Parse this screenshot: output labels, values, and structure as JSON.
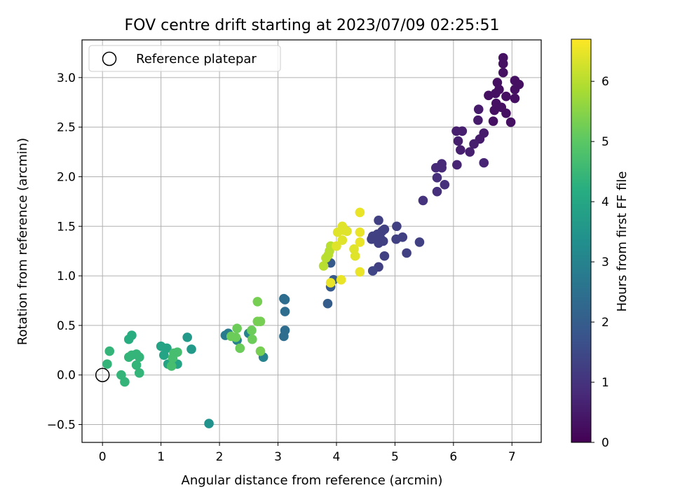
{
  "chart_data": {
    "type": "scatter",
    "title": "FOV centre drift starting at 2023/07/09 02:25:51",
    "xlabel": "Angular distance from reference (arcmin)",
    "ylabel": "Rotation from reference (arcmin)",
    "xlim": [
      -0.35,
      7.5
    ],
    "ylim": [
      -0.68,
      3.38
    ],
    "xticks": [
      0,
      1,
      2,
      3,
      4,
      5,
      6,
      7
    ],
    "xtick_labels": [
      "0",
      "1",
      "2",
      "3",
      "4",
      "5",
      "6",
      "7"
    ],
    "yticks": [
      -0.5,
      0.0,
      0.5,
      1.0,
      1.5,
      2.0,
      2.5,
      3.0
    ],
    "ytick_labels": [
      "−0.5",
      "0.0",
      "0.5",
      "1.0",
      "1.5",
      "2.0",
      "2.5",
      "3.0"
    ],
    "grid": true,
    "legend": {
      "placement": "upper-left",
      "entries": [
        "Reference platepar"
      ]
    },
    "reference_point": {
      "x": 0,
      "y": 0,
      "label": "Reference platepar"
    },
    "colorbar": {
      "label": "Hours from first FF file",
      "colormap": "viridis",
      "range": [
        0,
        6.7
      ],
      "ticks": [
        0,
        1,
        2,
        3,
        4,
        5,
        6
      ],
      "tick_labels": [
        "0",
        "1",
        "2",
        "3",
        "4",
        "5",
        "6"
      ]
    },
    "points": [
      {
        "x": 6.85,
        "y": 3.2,
        "h": 0.3
      },
      {
        "x": 6.85,
        "y": 3.14,
        "h": 0.3
      },
      {
        "x": 6.85,
        "y": 3.05,
        "h": 0.3
      },
      {
        "x": 7.05,
        "y": 2.97,
        "h": 0.3
      },
      {
        "x": 7.12,
        "y": 2.93,
        "h": 0.3
      },
      {
        "x": 7.05,
        "y": 2.88,
        "h": 0.3
      },
      {
        "x": 6.75,
        "y": 2.95,
        "h": 0.3
      },
      {
        "x": 6.78,
        "y": 2.88,
        "h": 0.3
      },
      {
        "x": 6.72,
        "y": 2.84,
        "h": 0.3
      },
      {
        "x": 6.9,
        "y": 2.81,
        "h": 0.3
      },
      {
        "x": 7.05,
        "y": 2.79,
        "h": 0.3
      },
      {
        "x": 6.6,
        "y": 2.82,
        "h": 0.3
      },
      {
        "x": 6.73,
        "y": 2.74,
        "h": 0.3
      },
      {
        "x": 6.82,
        "y": 2.7,
        "h": 0.3
      },
      {
        "x": 6.7,
        "y": 2.67,
        "h": 0.3
      },
      {
        "x": 6.9,
        "y": 2.64,
        "h": 0.3
      },
      {
        "x": 6.68,
        "y": 2.56,
        "h": 0.3
      },
      {
        "x": 6.98,
        "y": 2.55,
        "h": 0.3
      },
      {
        "x": 6.43,
        "y": 2.68,
        "h": 0.5
      },
      {
        "x": 6.42,
        "y": 2.57,
        "h": 0.5
      },
      {
        "x": 6.52,
        "y": 2.44,
        "h": 0.5
      },
      {
        "x": 6.45,
        "y": 2.38,
        "h": 0.5
      },
      {
        "x": 6.35,
        "y": 2.33,
        "h": 0.6
      },
      {
        "x": 6.05,
        "y": 2.46,
        "h": 0.6
      },
      {
        "x": 6.15,
        "y": 2.46,
        "h": 0.6
      },
      {
        "x": 6.08,
        "y": 2.36,
        "h": 0.6
      },
      {
        "x": 6.12,
        "y": 2.27,
        "h": 0.6
      },
      {
        "x": 6.28,
        "y": 2.25,
        "h": 0.6
      },
      {
        "x": 6.52,
        "y": 2.14,
        "h": 0.7
      },
      {
        "x": 6.06,
        "y": 2.12,
        "h": 0.7
      },
      {
        "x": 5.8,
        "y": 2.13,
        "h": 0.8
      },
      {
        "x": 5.7,
        "y": 2.09,
        "h": 0.8
      },
      {
        "x": 5.8,
        "y": 2.09,
        "h": 0.8
      },
      {
        "x": 5.72,
        "y": 1.99,
        "h": 0.9
      },
      {
        "x": 5.85,
        "y": 1.92,
        "h": 0.9
      },
      {
        "x": 5.72,
        "y": 1.85,
        "h": 0.9
      },
      {
        "x": 5.48,
        "y": 1.76,
        "h": 1.0
      },
      {
        "x": 4.72,
        "y": 1.56,
        "h": 1.3
      },
      {
        "x": 5.03,
        "y": 1.5,
        "h": 1.3
      },
      {
        "x": 4.82,
        "y": 1.47,
        "h": 1.3
      },
      {
        "x": 4.78,
        "y": 1.45,
        "h": 1.3
      },
      {
        "x": 4.7,
        "y": 1.42,
        "h": 1.3
      },
      {
        "x": 4.62,
        "y": 1.4,
        "h": 1.3
      },
      {
        "x": 4.75,
        "y": 1.38,
        "h": 1.3
      },
      {
        "x": 5.13,
        "y": 1.39,
        "h": 1.3
      },
      {
        "x": 5.02,
        "y": 1.37,
        "h": 1.3
      },
      {
        "x": 4.6,
        "y": 1.37,
        "h": 1.3
      },
      {
        "x": 4.8,
        "y": 1.35,
        "h": 1.3
      },
      {
        "x": 4.72,
        "y": 1.33,
        "h": 1.3
      },
      {
        "x": 5.42,
        "y": 1.34,
        "h": 1.3
      },
      {
        "x": 5.2,
        "y": 1.23,
        "h": 1.3
      },
      {
        "x": 4.82,
        "y": 1.2,
        "h": 1.3
      },
      {
        "x": 4.72,
        "y": 1.09,
        "h": 1.3
      },
      {
        "x": 4.62,
        "y": 1.05,
        "h": 1.4
      },
      {
        "x": 3.9,
        "y": 1.13,
        "h": 1.9
      },
      {
        "x": 3.95,
        "y": 0.96,
        "h": 1.9
      },
      {
        "x": 3.9,
        "y": 0.89,
        "h": 1.9
      },
      {
        "x": 3.85,
        "y": 0.72,
        "h": 2.0
      },
      {
        "x": 3.1,
        "y": 0.77,
        "h": 2.4
      },
      {
        "x": 3.12,
        "y": 0.76,
        "h": 2.4
      },
      {
        "x": 3.12,
        "y": 0.64,
        "h": 2.4
      },
      {
        "x": 3.12,
        "y": 0.45,
        "h": 2.4
      },
      {
        "x": 3.1,
        "y": 0.39,
        "h": 2.4
      },
      {
        "x": 2.1,
        "y": 0.4,
        "h": 2.8
      },
      {
        "x": 2.15,
        "y": 0.42,
        "h": 2.8
      },
      {
        "x": 2.3,
        "y": 0.35,
        "h": 3.0
      },
      {
        "x": 2.5,
        "y": 0.42,
        "h": 3.0
      },
      {
        "x": 2.75,
        "y": 0.18,
        "h": 3.0
      },
      {
        "x": 1.82,
        "y": -0.49,
        "h": 3.4
      },
      {
        "x": 1.45,
        "y": 0.38,
        "h": 3.6
      },
      {
        "x": 1.52,
        "y": 0.26,
        "h": 3.6
      },
      {
        "x": 1.0,
        "y": 0.29,
        "h": 3.9
      },
      {
        "x": 1.1,
        "y": 0.27,
        "h": 3.9
      },
      {
        "x": 1.05,
        "y": 0.2,
        "h": 3.9
      },
      {
        "x": 1.12,
        "y": 0.11,
        "h": 3.9
      },
      {
        "x": 1.28,
        "y": 0.11,
        "h": 3.9
      },
      {
        "x": 0.45,
        "y": 0.36,
        "h": 4.2
      },
      {
        "x": 0.5,
        "y": 0.4,
        "h": 4.2
      },
      {
        "x": 0.12,
        "y": 0.24,
        "h": 4.4
      },
      {
        "x": 0.08,
        "y": 0.11,
        "h": 4.4
      },
      {
        "x": 0.5,
        "y": 0.2,
        "h": 4.4
      },
      {
        "x": 0.45,
        "y": 0.18,
        "h": 4.4
      },
      {
        "x": 0.58,
        "y": 0.21,
        "h": 4.4
      },
      {
        "x": 0.63,
        "y": 0.18,
        "h": 4.4
      },
      {
        "x": 0.58,
        "y": 0.1,
        "h": 4.4
      },
      {
        "x": 0.63,
        "y": 0.02,
        "h": 4.4
      },
      {
        "x": 0.32,
        "y": 0.0,
        "h": 4.4
      },
      {
        "x": 0.38,
        "y": -0.07,
        "h": 4.4
      },
      {
        "x": 1.22,
        "y": 0.22,
        "h": 4.7
      },
      {
        "x": 1.28,
        "y": 0.23,
        "h": 4.7
      },
      {
        "x": 1.2,
        "y": 0.17,
        "h": 4.7
      },
      {
        "x": 1.18,
        "y": 0.09,
        "h": 4.7
      },
      {
        "x": 2.2,
        "y": 0.39,
        "h": 5.2
      },
      {
        "x": 2.28,
        "y": 0.38,
        "h": 5.2
      },
      {
        "x": 2.3,
        "y": 0.47,
        "h": 5.2
      },
      {
        "x": 2.35,
        "y": 0.27,
        "h": 5.2
      },
      {
        "x": 2.55,
        "y": 0.45,
        "h": 5.2
      },
      {
        "x": 2.56,
        "y": 0.36,
        "h": 5.2
      },
      {
        "x": 2.65,
        "y": 0.54,
        "h": 5.3
      },
      {
        "x": 2.7,
        "y": 0.54,
        "h": 5.3
      },
      {
        "x": 2.65,
        "y": 0.74,
        "h": 5.3
      },
      {
        "x": 2.7,
        "y": 0.24,
        "h": 5.3
      },
      {
        "x": 3.78,
        "y": 1.1,
        "h": 6.0
      },
      {
        "x": 3.82,
        "y": 1.18,
        "h": 6.0
      },
      {
        "x": 3.86,
        "y": 1.21,
        "h": 6.0
      },
      {
        "x": 3.88,
        "y": 1.25,
        "h": 6.0
      },
      {
        "x": 3.9,
        "y": 1.3,
        "h": 6.0
      },
      {
        "x": 4.0,
        "y": 1.3,
        "h": 6.4
      },
      {
        "x": 4.02,
        "y": 1.44,
        "h": 6.4
      },
      {
        "x": 4.1,
        "y": 1.5,
        "h": 6.4
      },
      {
        "x": 4.12,
        "y": 1.46,
        "h": 6.4
      },
      {
        "x": 4.18,
        "y": 1.45,
        "h": 6.4
      },
      {
        "x": 4.1,
        "y": 1.36,
        "h": 6.4
      },
      {
        "x": 4.3,
        "y": 1.27,
        "h": 6.4
      },
      {
        "x": 4.32,
        "y": 1.2,
        "h": 6.4
      },
      {
        "x": 4.4,
        "y": 1.64,
        "h": 6.5
      },
      {
        "x": 4.4,
        "y": 1.44,
        "h": 6.5
      },
      {
        "x": 4.4,
        "y": 1.34,
        "h": 6.5
      },
      {
        "x": 4.4,
        "y": 1.04,
        "h": 6.5
      },
      {
        "x": 4.08,
        "y": 0.96,
        "h": 6.5
      },
      {
        "x": 3.9,
        "y": 0.93,
        "h": 6.5
      }
    ]
  }
}
